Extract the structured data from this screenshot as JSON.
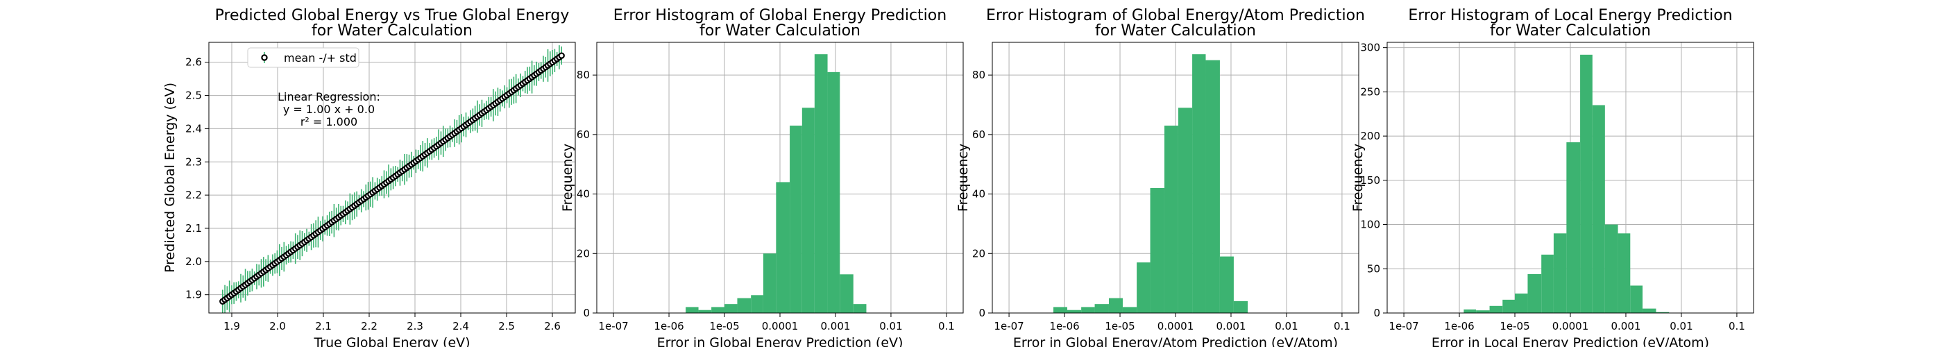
{
  "colors": {
    "accent": "#3cb371",
    "marker": "#000000",
    "grid": "#b0b0b0"
  },
  "chart_data": [
    {
      "type": "scatter",
      "title": "Predicted Global Energy vs True Global Energy\nfor Water Calculation",
      "xlabel": "True Global Energy (eV)",
      "ylabel": "Predicted Global Energy (eV)",
      "xlim": [
        1.85,
        2.65
      ],
      "ylim": [
        1.845,
        2.66
      ],
      "xticks": [
        1.9,
        2.0,
        2.1,
        2.2,
        2.3,
        2.4,
        2.5,
        2.6
      ],
      "xtick_labels": [
        "1.9",
        "2.0",
        "2.1",
        "2.2",
        "2.3",
        "2.4",
        "2.5",
        "2.6"
      ],
      "yticks": [
        1.9,
        2.0,
        2.1,
        2.2,
        2.3,
        2.4,
        2.5,
        2.6
      ],
      "ytick_labels": [
        "1.9",
        "2.0",
        "2.1",
        "2.2",
        "2.3",
        "2.4",
        "2.5",
        "2.6"
      ],
      "grid": true,
      "legend_position": "top-left",
      "legend": [
        "mean -/+ std"
      ],
      "annotation": [
        "Linear Regression:",
        "y = 1.00 x + 0.0",
        "r² = 1.000"
      ],
      "points": {
        "x_start": 1.88,
        "x_end": 2.62,
        "count": 150,
        "slope": 1.0,
        "intercept": 0.0,
        "std_min": 0.02,
        "std_max": 0.05
      }
    },
    {
      "type": "bar",
      "title": "Error Histogram of Global Energy Prediction\nfor Water Calculation",
      "xlabel": "Error in Global Energy Prediction (eV)",
      "ylabel": "Frequency",
      "xscale": "log",
      "xlim": [
        5e-08,
        0.2
      ],
      "ylim": [
        0,
        91
      ],
      "xticks": [
        1e-07,
        1e-06,
        1e-05,
        0.0001,
        0.001,
        0.01,
        0.1
      ],
      "xtick_labels": [
        "1e-07",
        "1e-06",
        "1e-05",
        "0.0001",
        "0.001",
        "0.01",
        "0.1"
      ],
      "yticks": [
        0,
        20,
        40,
        60,
        80
      ],
      "ytick_labels": [
        "0",
        "20",
        "40",
        "60",
        "80"
      ],
      "grid": true,
      "bin_edges": [
        2e-06,
        3.4e-06,
        5.8e-06,
        1e-05,
        1.7e-05,
        3e-05,
        5e-05,
        8.5e-05,
        0.00015,
        0.00025,
        0.00042,
        0.00072,
        0.0012,
        0.0021,
        0.0036,
        0.006
      ],
      "values": [
        2,
        1,
        2,
        3,
        5,
        6,
        20,
        44,
        63,
        69,
        87,
        81,
        13,
        3,
        0
      ]
    },
    {
      "type": "bar",
      "title": "Error Histogram of Global Energy/Atom Prediction\nfor Water Calculation",
      "xlabel": "Error in Global Energy/Atom Prediction (eV/Atom)",
      "ylabel": "Frequency",
      "xscale": "log",
      "xlim": [
        5e-08,
        0.2
      ],
      "ylim": [
        0,
        91
      ],
      "xticks": [
        1e-07,
        1e-06,
        1e-05,
        0.0001,
        0.001,
        0.01,
        0.1
      ],
      "xtick_labels": [
        "1e-07",
        "1e-06",
        "1e-05",
        "0.0001",
        "0.001",
        "0.01",
        "0.1"
      ],
      "yticks": [
        0,
        20,
        40,
        60,
        80
      ],
      "ytick_labels": [
        "0",
        "20",
        "40",
        "60",
        "80"
      ],
      "grid": true,
      "bin_edges": [
        6.3e-07,
        1.12e-06,
        2e-06,
        3.5e-06,
        6.3e-06,
        1.12e-05,
        2e-05,
        3.5e-05,
        6.3e-05,
        0.000112,
        0.0002,
        0.00035,
        0.00063,
        0.00112,
        0.002,
        0.0035
      ],
      "values": [
        2,
        1,
        2,
        3,
        5,
        2,
        17,
        42,
        63,
        69,
        87,
        85,
        19,
        4,
        0
      ]
    },
    {
      "type": "bar",
      "title": "Error Histogram of Local Energy Prediction\nfor Water Calculation",
      "xlabel": "Error in Local Energy Prediction (eV/Atom)",
      "ylabel": "Frequency",
      "xscale": "log",
      "xlim": [
        5e-08,
        0.2
      ],
      "ylim": [
        0,
        306
      ],
      "xticks": [
        1e-07,
        1e-06,
        1e-05,
        0.0001,
        0.001,
        0.01,
        0.1
      ],
      "xtick_labels": [
        "1e-07",
        "1e-06",
        "1e-05",
        "0.0001",
        "0.001",
        "0.01",
        "0.1"
      ],
      "yticks": [
        0,
        50,
        100,
        150,
        200,
        250,
        300
      ],
      "ytick_labels": [
        "0",
        "50",
        "100",
        "150",
        "200",
        "250",
        "300"
      ],
      "grid": true,
      "bin_edges": [
        1.2e-06,
        2e-06,
        3.5e-06,
        6e-06,
        1e-05,
        1.7e-05,
        3e-05,
        5e-05,
        8.5e-05,
        0.00015,
        0.00025,
        0.00042,
        0.00072,
        0.0012,
        0.002,
        0.0035,
        0.006,
        0.01
      ],
      "values": [
        4,
        3,
        8,
        15,
        22,
        44,
        66,
        90,
        193,
        292,
        235,
        100,
        90,
        31,
        5,
        1,
        0
      ]
    }
  ]
}
